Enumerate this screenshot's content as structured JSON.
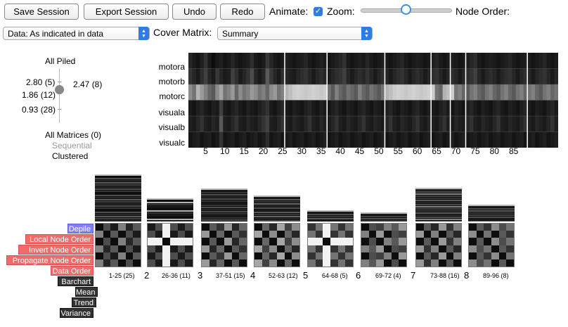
{
  "toolbar": {
    "save_session": "Save Session",
    "export_session": "Export Session",
    "undo": "Undo",
    "redo": "Redo",
    "animate_label": "Animate:",
    "animate_checked": true,
    "zoom_label": "Zoom:",
    "zoom_value": 0.5,
    "node_order_label": "Node Order:"
  },
  "row2": {
    "data_select": "Data: As indicated in data",
    "cover_matrix_label": "Cover Matrix:",
    "cover_matrix_select": "Summary"
  },
  "pile_panel": {
    "all_piled": "All Piled",
    "levels": [
      "2.80 (5)",
      "1.86 (12)",
      "0.93 (28)"
    ],
    "current": "2.47 (8)",
    "current_fraction": 0.62,
    "all_matrices": "All Matrices (0)",
    "sequential": "Sequential",
    "clustered": "Clustered"
  },
  "heatmap": {
    "rows": [
      "motora",
      "motorb",
      "motorc",
      "visuala",
      "visualb",
      "visualc"
    ],
    "xticks": [
      "5",
      "10",
      "15",
      "20",
      "25",
      "30",
      "35",
      "40",
      "45",
      "50",
      "55",
      "60",
      "65",
      "70",
      "75",
      "80",
      "85"
    ],
    "n_cols": 96,
    "separators": [
      25,
      36,
      51,
      63,
      68,
      72,
      88
    ],
    "values": [
      [
        0.15,
        0.1,
        0.08,
        0.12,
        0.2,
        0.1,
        0.05,
        0.1,
        0.12,
        0.08,
        0.1,
        0.15,
        0.1,
        0.08,
        0.1,
        0.12,
        0.18,
        0.1,
        0.08,
        0.1,
        0.22,
        0.15,
        0.1,
        0.08,
        0.1,
        0.12,
        0.1,
        0.08,
        0.1,
        0.12,
        0.15,
        0.1,
        0.08,
        0.1,
        0.12,
        0.1,
        0.08,
        0.1,
        0.12,
        0.15,
        0.2,
        0.1,
        0.08,
        0.1,
        0.12,
        0.1,
        0.15,
        0.1,
        0.08,
        0.1,
        0.12,
        0.1,
        0.08,
        0.1,
        0.12,
        0.15,
        0.1,
        0.08,
        0.1,
        0.12,
        0.1,
        0.08,
        0.1,
        0.12,
        0.15,
        0.1,
        0.08,
        0.1,
        0.12,
        0.1,
        0.08,
        0.1,
        0.12,
        0.15,
        0.18,
        0.1,
        0.08,
        0.1,
        0.12,
        0.1,
        0.08,
        0.1,
        0.12,
        0.15,
        0.1,
        0.08,
        0.1,
        0.12,
        0.1,
        0.08,
        0.1,
        0.12,
        0.15,
        0.1,
        0.08,
        0.1
      ],
      [
        0.2,
        0.15,
        0.1,
        0.18,
        0.25,
        0.15,
        0.1,
        0.22,
        0.15,
        0.1,
        0.12,
        0.25,
        0.18,
        0.1,
        0.15,
        0.2,
        0.3,
        0.15,
        0.1,
        0.15,
        0.35,
        0.22,
        0.15,
        0.1,
        0.18,
        0.15,
        0.12,
        0.1,
        0.15,
        0.18,
        0.2,
        0.15,
        0.1,
        0.15,
        0.18,
        0.15,
        0.1,
        0.15,
        0.18,
        0.2,
        0.25,
        0.15,
        0.1,
        0.15,
        0.18,
        0.15,
        0.2,
        0.15,
        0.1,
        0.15,
        0.18,
        0.15,
        0.1,
        0.15,
        0.18,
        0.2,
        0.15,
        0.1,
        0.15,
        0.18,
        0.15,
        0.1,
        0.15,
        0.18,
        0.2,
        0.15,
        0.1,
        0.15,
        0.18,
        0.15,
        0.1,
        0.15,
        0.18,
        0.2,
        0.25,
        0.15,
        0.1,
        0.15,
        0.18,
        0.15,
        0.1,
        0.15,
        0.18,
        0.2,
        0.15,
        0.1,
        0.15,
        0.18,
        0.15,
        0.1,
        0.15,
        0.18,
        0.2,
        0.15,
        0.1,
        0.15
      ],
      [
        0.55,
        0.45,
        0.7,
        0.6,
        0.5,
        0.4,
        0.35,
        0.55,
        0.65,
        0.45,
        0.5,
        0.6,
        0.4,
        0.55,
        0.45,
        0.5,
        0.6,
        0.55,
        0.45,
        0.5,
        0.4,
        0.55,
        0.6,
        0.45,
        0.5,
        0.7,
        0.75,
        0.8,
        0.82,
        0.8,
        0.78,
        0.8,
        0.82,
        0.8,
        0.78,
        0.8,
        0.45,
        0.35,
        0.5,
        0.4,
        0.35,
        0.45,
        0.4,
        0.35,
        0.5,
        0.4,
        0.35,
        0.45,
        0.4,
        0.35,
        0.45,
        0.7,
        0.75,
        0.8,
        0.82,
        0.8,
        0.78,
        0.8,
        0.82,
        0.8,
        0.78,
        0.8,
        0.82,
        0.8,
        0.45,
        0.4,
        0.7,
        0.75,
        0.8,
        0.45,
        0.5,
        0.4,
        0.35,
        0.45,
        0.5,
        0.4,
        0.35,
        0.45,
        0.5,
        0.4,
        0.35,
        0.45,
        0.5,
        0.4,
        0.35,
        0.45,
        0.5,
        0.4,
        0.45,
        0.5,
        0.4,
        0.35,
        0.45,
        0.5,
        0.4,
        0.45
      ],
      [
        0.1,
        0.08,
        0.12,
        0.15,
        0.1,
        0.08,
        0.12,
        0.1,
        0.25,
        0.1,
        0.08,
        0.12,
        0.15,
        0.1,
        0.08,
        0.12,
        0.1,
        0.08,
        0.12,
        0.15,
        0.2,
        0.1,
        0.08,
        0.12,
        0.15,
        0.1,
        0.08,
        0.12,
        0.1,
        0.08,
        0.12,
        0.15,
        0.1,
        0.08,
        0.12,
        0.1,
        0.08,
        0.12,
        0.15,
        0.1,
        0.08,
        0.12,
        0.1,
        0.08,
        0.12,
        0.15,
        0.1,
        0.08,
        0.12,
        0.1,
        0.08,
        0.12,
        0.15,
        0.1,
        0.08,
        0.12,
        0.1,
        0.08,
        0.12,
        0.15,
        0.1,
        0.08,
        0.12,
        0.1,
        0.08,
        0.12,
        0.15,
        0.1,
        0.08,
        0.12,
        0.1,
        0.08,
        0.12,
        0.15,
        0.1,
        0.08,
        0.12,
        0.1,
        0.08,
        0.12,
        0.15,
        0.1,
        0.08,
        0.12,
        0.1,
        0.08,
        0.12,
        0.15,
        0.1,
        0.08,
        0.12,
        0.1,
        0.08,
        0.12,
        0.15,
        0.1
      ],
      [
        0.12,
        0.1,
        0.15,
        0.2,
        0.12,
        0.1,
        0.15,
        0.12,
        0.35,
        0.12,
        0.1,
        0.15,
        0.2,
        0.12,
        0.1,
        0.15,
        0.12,
        0.1,
        0.15,
        0.2,
        0.25,
        0.12,
        0.1,
        0.15,
        0.2,
        0.12,
        0.1,
        0.15,
        0.12,
        0.1,
        0.15,
        0.2,
        0.12,
        0.1,
        0.15,
        0.12,
        0.1,
        0.15,
        0.2,
        0.12,
        0.1,
        0.15,
        0.12,
        0.1,
        0.15,
        0.2,
        0.12,
        0.1,
        0.15,
        0.12,
        0.1,
        0.15,
        0.2,
        0.12,
        0.1,
        0.15,
        0.12,
        0.1,
        0.15,
        0.2,
        0.12,
        0.1,
        0.15,
        0.12,
        0.1,
        0.15,
        0.2,
        0.12,
        0.1,
        0.15,
        0.12,
        0.1,
        0.15,
        0.2,
        0.12,
        0.1,
        0.15,
        0.12,
        0.1,
        0.15,
        0.2,
        0.12,
        0.1,
        0.15,
        0.12,
        0.1,
        0.15,
        0.2,
        0.12,
        0.1,
        0.15,
        0.12,
        0.1,
        0.15,
        0.2,
        0.12
      ],
      [
        0.08,
        0.1,
        0.12,
        0.08,
        0.1,
        0.12,
        0.08,
        0.1,
        0.2,
        0.08,
        0.1,
        0.12,
        0.08,
        0.1,
        0.12,
        0.08,
        0.1,
        0.12,
        0.08,
        0.1,
        0.18,
        0.08,
        0.1,
        0.12,
        0.08,
        0.1,
        0.12,
        0.08,
        0.1,
        0.12,
        0.08,
        0.1,
        0.12,
        0.08,
        0.1,
        0.12,
        0.08,
        0.1,
        0.12,
        0.08,
        0.1,
        0.12,
        0.08,
        0.1,
        0.12,
        0.08,
        0.1,
        0.12,
        0.08,
        0.1,
        0.12,
        0.08,
        0.1,
        0.12,
        0.08,
        0.1,
        0.12,
        0.08,
        0.1,
        0.12,
        0.08,
        0.1,
        0.12,
        0.08,
        0.1,
        0.12,
        0.08,
        0.1,
        0.12,
        0.08,
        0.1,
        0.12,
        0.08,
        0.1,
        0.12,
        0.08,
        0.1,
        0.12,
        0.08,
        0.1,
        0.12,
        0.08,
        0.1,
        0.12,
        0.08,
        0.1,
        0.12,
        0.08,
        0.1,
        0.12,
        0.08,
        0.1,
        0.12,
        0.08,
        0.1,
        0.12
      ]
    ]
  },
  "menu": {
    "depile": "Depile",
    "local_node_order": "Local Node Order",
    "invert_node_order": "Invert Node Order",
    "propagate_node_order": "Propagate Node Order",
    "data_order": "Data Order",
    "barchart": "Barchart",
    "mean": "Mean",
    "trend": "Trend",
    "variance": "Variance"
  },
  "piles": [
    {
      "num": "",
      "range": "1-25 (25)"
    },
    {
      "num": "2",
      "range": "26-36 (11)"
    },
    {
      "num": "3",
      "range": "37-51 (15)"
    },
    {
      "num": "4",
      "range": "52-63 (12)"
    },
    {
      "num": "5",
      "range": "64-68 (5)"
    },
    {
      "num": "6",
      "range": "69-72 (4)"
    },
    {
      "num": "7",
      "range": "73-88 (16)"
    },
    {
      "num": "8",
      "range": "89-96 (8)"
    }
  ]
}
